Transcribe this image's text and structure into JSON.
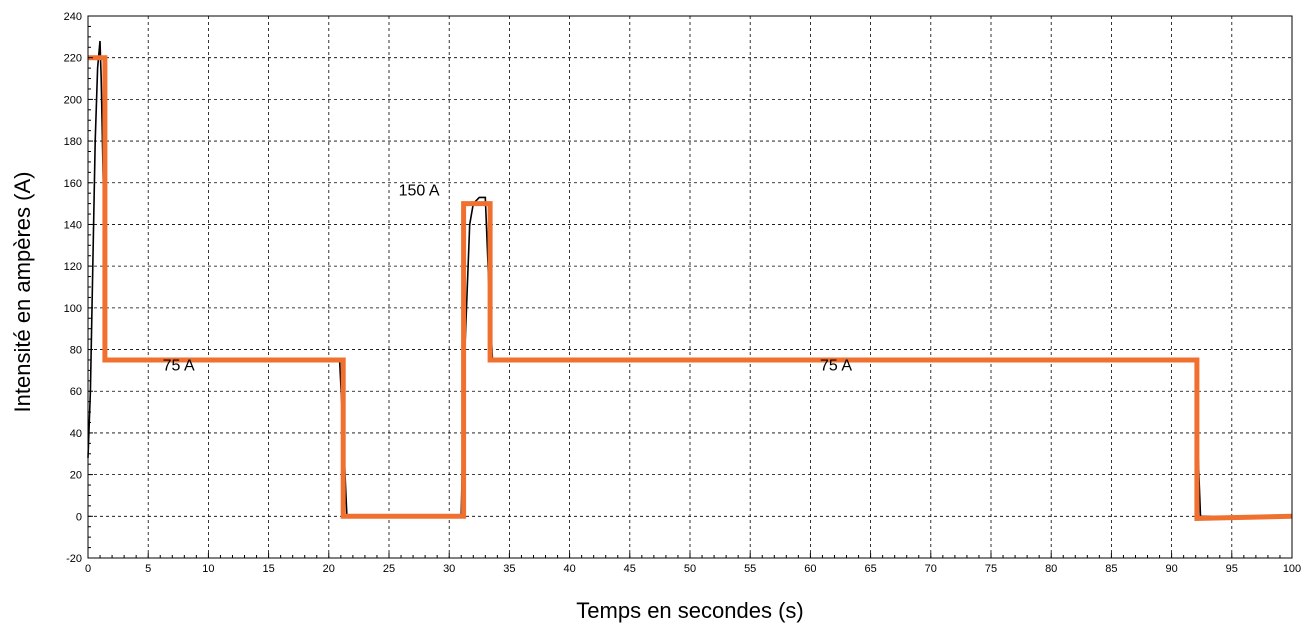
{
  "chart_data": {
    "type": "line",
    "title": "",
    "xlabel": "Temps en secondes (s)",
    "ylabel": "Intensité en ampères (A)",
    "xlim": [
      0,
      100
    ],
    "ylim": [
      -20,
      240
    ],
    "x_ticks": [
      0,
      5,
      10,
      15,
      20,
      25,
      30,
      35,
      40,
      45,
      50,
      55,
      60,
      65,
      70,
      75,
      80,
      85,
      90,
      95,
      100
    ],
    "y_ticks": [
      -20,
      0,
      20,
      40,
      60,
      80,
      100,
      120,
      140,
      160,
      180,
      200,
      220,
      240
    ],
    "grid": true,
    "series": [
      {
        "color": "#000000",
        "x": [
          0,
          0.2,
          0.4,
          0.6,
          0.8,
          1.0,
          1.1,
          1.3,
          1.5,
          20.9,
          21.2,
          21.5,
          31.0,
          31.3,
          31.7,
          32.0,
          32.5,
          33.0,
          33.3,
          33.6,
          92.0,
          92.2,
          92.4,
          100
        ],
        "y": [
          28,
          60,
          120,
          180,
          215,
          228,
          210,
          150,
          75,
          75,
          40,
          0,
          0,
          80,
          140,
          150,
          153,
          153,
          110,
          75,
          75,
          30,
          0,
          0
        ]
      },
      {
        "color": "#f07030",
        "x": [
          0,
          1.4,
          1.4,
          21.2,
          21.2,
          31.2,
          31.2,
          33.4,
          33.4,
          92.1,
          92.1,
          100
        ],
        "y": [
          220,
          220,
          75,
          75,
          0,
          0,
          150,
          150,
          75,
          75,
          -1,
          0
        ]
      }
    ],
    "annotations": [
      {
        "text": "75 A",
        "x": 6.2,
        "y": 70
      },
      {
        "text": "150 A",
        "x": 25.8,
        "y": 154
      },
      {
        "text": "75 A",
        "x": 60.8,
        "y": 70
      }
    ]
  }
}
